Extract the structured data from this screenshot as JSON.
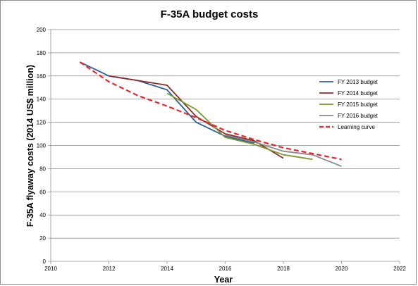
{
  "chart_data": {
    "type": "line",
    "title": "F-35A budget costs",
    "xlabel": "Year",
    "ylabel": "F-35A flyaway costs (2014 US$ million)",
    "xlim": [
      2010,
      2022
    ],
    "ylim": [
      0,
      200
    ],
    "xticks": [
      2010,
      2012,
      2014,
      2016,
      2018,
      2020,
      2022
    ],
    "yticks": [
      0,
      20,
      40,
      60,
      80,
      100,
      120,
      140,
      160,
      180,
      200
    ],
    "grid": "horizontal",
    "legend_position": "right",
    "series": [
      {
        "name": "FY 2013 budget",
        "color": "#2e5f9a",
        "dash": "solid",
        "points": [
          [
            2011,
            172
          ],
          [
            2012,
            160
          ],
          [
            2013,
            156
          ],
          [
            2014,
            148
          ],
          [
            2015,
            120
          ],
          [
            2016,
            108
          ],
          [
            2017,
            102
          ]
        ]
      },
      {
        "name": "FY 2014 budget",
        "color": "#8b2b2b",
        "dash": "solid",
        "points": [
          [
            2012,
            160
          ],
          [
            2013,
            156
          ],
          [
            2014,
            152
          ],
          [
            2015,
            125
          ],
          [
            2016,
            110
          ],
          [
            2017,
            104
          ],
          [
            2018,
            89
          ]
        ]
      },
      {
        "name": "FY 2015 budget",
        "color": "#7a9a2e",
        "dash": "solid",
        "points": [
          [
            2014,
            145
          ],
          [
            2015,
            131
          ],
          [
            2016,
            107
          ],
          [
            2017,
            101
          ],
          [
            2018,
            92
          ],
          [
            2019,
            88
          ]
        ]
      },
      {
        "name": "FY 2016 budget",
        "color": "#8a8a8a",
        "dash": "solid",
        "points": [
          [
            2016,
            109
          ],
          [
            2017,
            103
          ],
          [
            2018,
            95
          ],
          [
            2019,
            92
          ],
          [
            2020,
            82
          ]
        ]
      },
      {
        "name": "Learning curve",
        "color": "#e8262a",
        "dash": "dashed",
        "points": [
          [
            2011,
            172
          ],
          [
            2012,
            155
          ],
          [
            2013,
            143
          ],
          [
            2014,
            134
          ],
          [
            2015,
            124
          ],
          [
            2016,
            113
          ],
          [
            2017,
            105
          ],
          [
            2018,
            98
          ],
          [
            2019,
            93
          ],
          [
            2020,
            88
          ]
        ]
      }
    ]
  }
}
